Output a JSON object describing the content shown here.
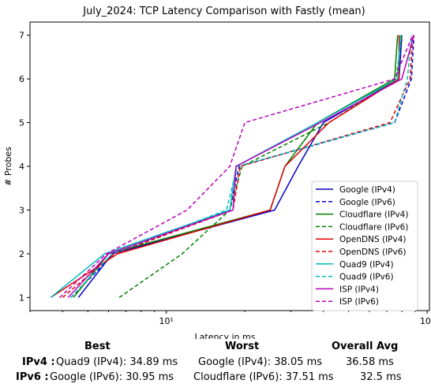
{
  "chart_data": {
    "type": "line",
    "title": "July_2024: TCP Latency Comparison with Fastly (mean)",
    "xlabel": "Latency in ms",
    "ylabel": "# Probes",
    "xscale": "log",
    "xlim": [
      3.0,
      102
    ],
    "ylim": [
      0.7,
      7.3
    ],
    "x_ticks": [
      10,
      100
    ],
    "x_tick_labels": [
      "10¹",
      "10²"
    ],
    "y_ticks": [
      1,
      2,
      3,
      4,
      5,
      6,
      7
    ],
    "y_tick_labels": [
      "1",
      "2",
      "3",
      "4",
      "5",
      "6",
      "7"
    ],
    "grid": false,
    "legend_position": "lower right",
    "series": [
      {
        "name": "Google (IPv4)",
        "color": "#0000cc",
        "dash": "solid",
        "x": [
          4.6,
          6.2,
          26.0,
          32.0,
          40.0,
          78.0,
          80.0
        ],
        "y": [
          1,
          2,
          3,
          4,
          5,
          6,
          7
        ]
      },
      {
        "name": "Google (IPv6)",
        "color": "#0000cc",
        "dash": "dashed",
        "x": [
          4.3,
          6.3,
          17.5,
          19.0,
          75.0,
          87.0,
          89.0
        ],
        "y": [
          1,
          2,
          3,
          4,
          5,
          6,
          7
        ]
      },
      {
        "name": "Cloudflare (IPv4)",
        "color": "#008000",
        "dash": "solid",
        "x": [
          4.4,
          6.0,
          25.0,
          28.5,
          38.0,
          75.0,
          77.0
        ],
        "y": [
          1,
          2,
          3,
          4,
          5,
          6,
          7
        ]
      },
      {
        "name": "Cloudflare (IPv6)",
        "color": "#008000",
        "dash": "dashed",
        "x": [
          6.6,
          11.5,
          17.5,
          19.5,
          42.0,
          76.0,
          80.0
        ],
        "y": [
          1,
          2,
          3,
          4,
          5,
          6,
          7
        ]
      },
      {
        "name": "OpenDNS (IPv4)",
        "color": "#e00000",
        "dash": "solid",
        "x": [
          3.6,
          6.5,
          25.0,
          28.5,
          42.0,
          78.0,
          78.0
        ],
        "y": [
          1,
          2,
          3,
          4,
          5,
          6,
          7
        ]
      },
      {
        "name": "OpenDNS (IPv6)",
        "color": "#e00000",
        "dash": "dashed",
        "x": [
          4.0,
          6.3,
          18.0,
          19.2,
          72.0,
          86.0,
          88.0
        ],
        "y": [
          1,
          2,
          3,
          4,
          5,
          6,
          7
        ]
      },
      {
        "name": "Quad9 (IPv4)",
        "color": "#00bbbb",
        "dash": "solid",
        "x": [
          3.6,
          5.8,
          17.5,
          18.5,
          38.0,
          77.0,
          79.0
        ],
        "y": [
          1,
          2,
          3,
          4,
          5,
          6,
          7
        ]
      },
      {
        "name": "Quad9 (IPv6)",
        "color": "#00bbbb",
        "dash": "dashed",
        "x": [
          4.3,
          6.2,
          17.0,
          18.7,
          75.0,
          84.0,
          87.0
        ],
        "y": [
          1,
          2,
          3,
          4,
          5,
          6,
          7
        ]
      },
      {
        "name": "ISP (IPv4)",
        "color": "#bb00bb",
        "dash": "solid",
        "x": [
          4.2,
          6.0,
          18.0,
          18.5,
          39.0,
          80.0,
          89.0
        ],
        "y": [
          1,
          2,
          3,
          4,
          5,
          6,
          7
        ]
      },
      {
        "name": "ISP (IPv6)",
        "color": "#bb00bb",
        "dash": "dashed",
        "x": [
          3.9,
          5.9,
          12.0,
          17.5,
          20.0,
          75.0,
          88.0
        ],
        "y": [
          1,
          2,
          3,
          4,
          5,
          6,
          7
        ]
      }
    ]
  },
  "summary": {
    "headers": {
      "best": "Best",
      "worst": "Worst",
      "overall": "Overall Avg"
    },
    "rows": [
      {
        "label": "IPv4 :",
        "best": "Quad9 (IPv4): 34.89 ms",
        "worst": "Google (IPv4): 38.05 ms",
        "overall": "36.58 ms"
      },
      {
        "label": "IPv6 :",
        "best": "Google (IPv6): 30.95 ms",
        "worst": "Cloudflare (IPv6): 37.51 ms",
        "overall": "32.5 ms"
      }
    ]
  }
}
